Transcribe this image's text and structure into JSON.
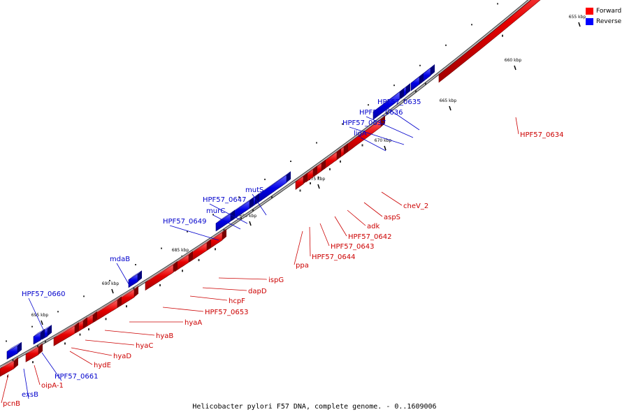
{
  "caption": "Helicobacter pylori F57 DNA, complete genome. - 0..1609006",
  "legend": {
    "forward_label": "Forward",
    "reverse_label": "Reverse",
    "forward_color": "#ff0000",
    "reverse_color": "#0000ff"
  },
  "colors": {
    "forward_text": "#cc0000",
    "reverse_text": "#0000cc",
    "backbone": "#999999"
  },
  "scale_labels": [
    "655 kbp",
    "660 kbp",
    "665 kbp",
    "670 kbp",
    "675 kbp",
    "680 kbp",
    "685 kbp",
    "690 kbp",
    "695 kbp"
  ],
  "forward_genes": [
    "HPF57_0634",
    "cheV_2",
    "aspS",
    "adk",
    "HPF57_0642",
    "HPF57_0643",
    "HPF57_0644",
    "ppa",
    "ispG",
    "dapD",
    "hcpF",
    "HPF57_0653",
    "hyaA",
    "hyaB",
    "hyaC",
    "hyaD",
    "hydE",
    "oipA-1",
    "pcnB"
  ],
  "reverse_genes": [
    "HPF57_0635",
    "HPF57_0636",
    "HPF57_0637",
    "ligA",
    "mutS",
    "HPF57_0647",
    "murC",
    "HPF57_0649",
    "mdaB",
    "HPF57_0660",
    "HPF57_0661",
    "exsB"
  ]
}
